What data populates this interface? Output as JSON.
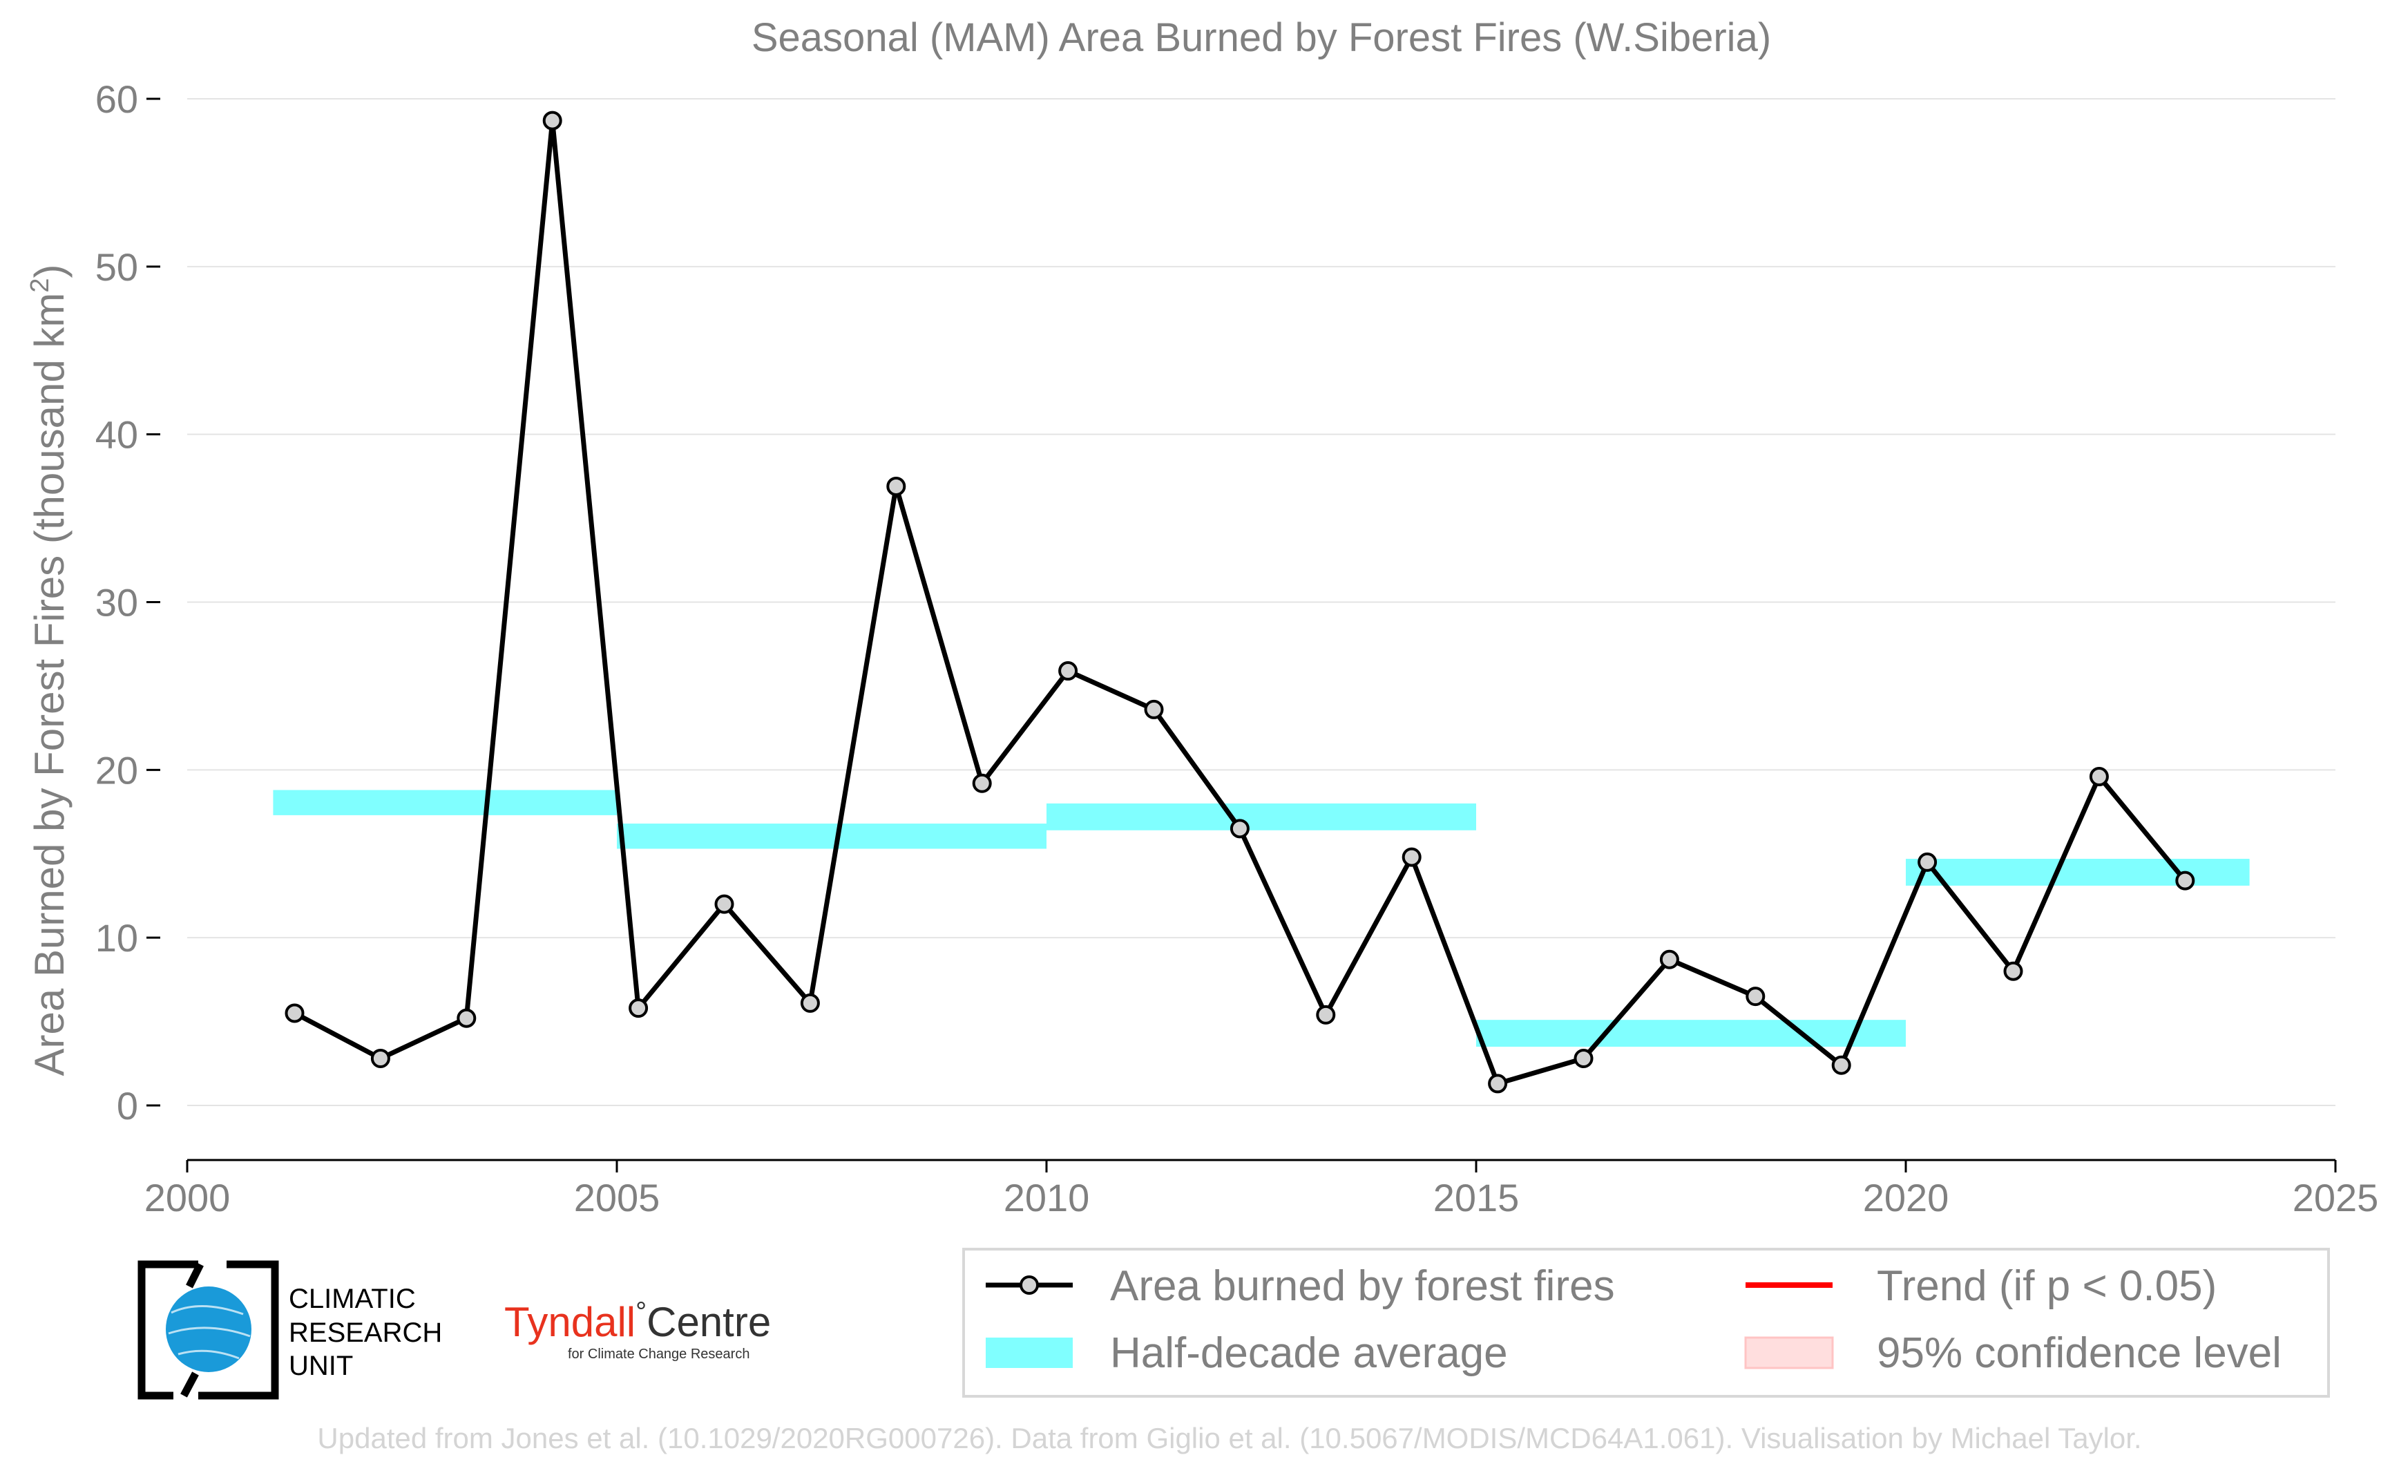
{
  "chart_data": {
    "type": "line",
    "title": "Seasonal (MAM) Area Burned by Forest Fires (W.Siberia)",
    "ylabel": "Area Burned by Forest Fires (thousand km",
    "ylabel_sup": "2",
    "ylabel_close": ")",
    "xlabel": "",
    "xlim": [
      2000,
      2025
    ],
    "ylim": [
      -3.3,
      60
    ],
    "xticks": [
      2000,
      2005,
      2010,
      2015,
      2020,
      2025
    ],
    "yticks": [
      0,
      10,
      20,
      30,
      40,
      50,
      60
    ],
    "grid": "horizontal",
    "legend_position": "bottom-right",
    "series": [
      {
        "name": "Area burned by forest fires",
        "kind": "line-with-markers",
        "color": "#000000",
        "marker_fill": "#d3d3d3",
        "x": [
          2001.25,
          2002.25,
          2003.25,
          2004.25,
          2005.25,
          2006.25,
          2007.25,
          2008.25,
          2009.25,
          2010.25,
          2011.25,
          2012.25,
          2013.25,
          2014.25,
          2015.25,
          2016.25,
          2017.25,
          2018.25,
          2019.25,
          2020.25,
          2021.25,
          2022.25,
          2023.25
        ],
        "values": [
          5.5,
          2.8,
          5.2,
          58.7,
          5.8,
          12.0,
          6.1,
          36.9,
          19.2,
          25.9,
          23.6,
          16.5,
          5.4,
          14.8,
          1.3,
          2.8,
          8.7,
          6.5,
          2.4,
          14.5,
          8.0,
          19.6,
          13.4
        ]
      },
      {
        "name": "Half-decade average",
        "kind": "bands",
        "color": "#80ffff",
        "bands": [
          {
            "x0": 2001,
            "x1": 2005,
            "y0": 17.3,
            "y1": 18.8
          },
          {
            "x0": 2005,
            "x1": 2010,
            "y0": 15.3,
            "y1": 16.8
          },
          {
            "x0": 2010,
            "x1": 2015,
            "y0": 16.4,
            "y1": 18.0
          },
          {
            "x0": 2015,
            "x1": 2020,
            "y0": 3.5,
            "y1": 5.1
          },
          {
            "x0": 2020,
            "x1": 2024,
            "y0": 13.1,
            "y1": 14.7
          }
        ]
      }
    ],
    "legend": [
      {
        "label": "Area burned by forest fires",
        "symbol": "line-marker",
        "color": "#000000"
      },
      {
        "label": "Trend (if p < 0.05)",
        "symbol": "line",
        "color": "#ff0000"
      },
      {
        "label": "Half-decade average",
        "symbol": "patch",
        "color": "#80ffff"
      },
      {
        "label": "95% confidence level",
        "symbol": "patch",
        "color": "#ffdede"
      }
    ]
  },
  "logos": {
    "cru": {
      "line1": "CLIMATIC",
      "line2": "RESEARCH",
      "line3": "UNIT"
    },
    "tyndall": {
      "name": "Tyndall",
      "degree": "°",
      "centre": "Centre",
      "subtitle": "for Climate Change Research"
    }
  },
  "credit": "Updated from Jones et al. (10.1029/2020RG000726). Data from Giglio et al. (10.5067/MODIS/MCD64A1.061). Visualisation by Michael Taylor."
}
